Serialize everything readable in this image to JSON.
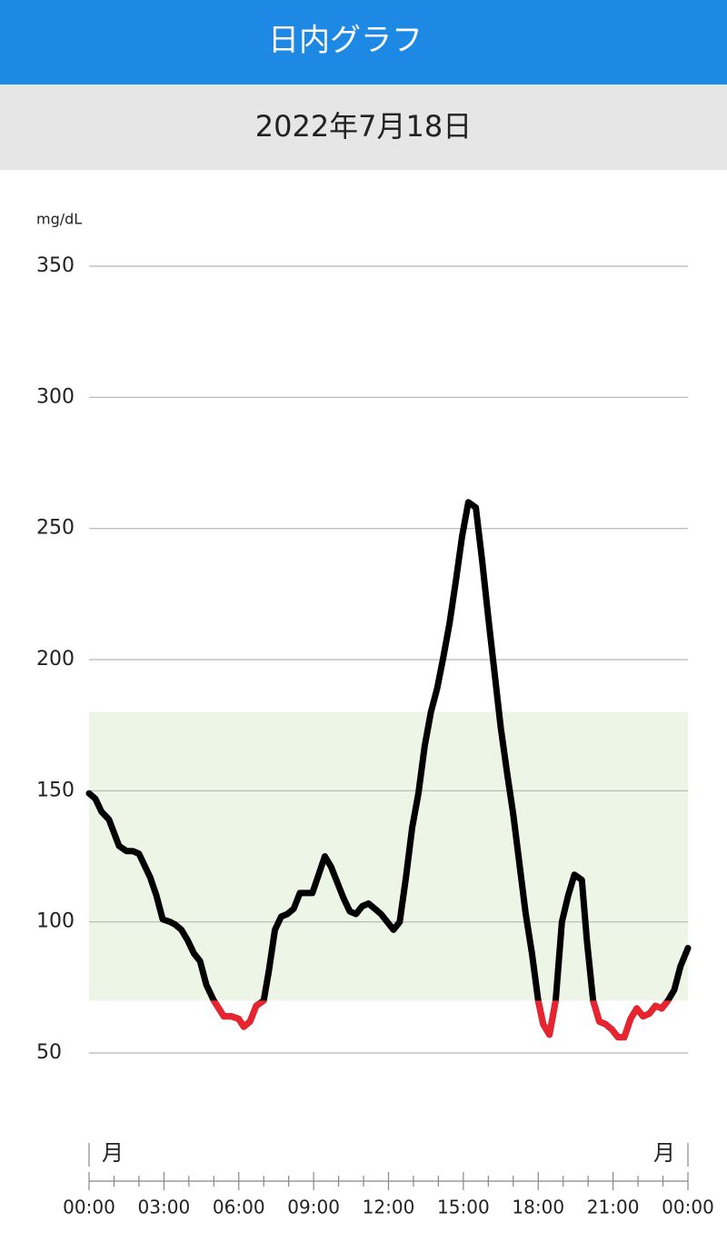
{
  "header": {
    "title": "日内グラフ"
  },
  "date": "2022年7月18日",
  "chart_data": {
    "type": "line",
    "y_axis_label": "mg/dL",
    "ylim": [
      50,
      350
    ],
    "yticks": [
      50,
      100,
      150,
      200,
      250,
      300,
      350
    ],
    "xlim": [
      0,
      24
    ],
    "xticks": [
      {
        "value": 0,
        "label": "00:00"
      },
      {
        "value": 3,
        "label": "03:00"
      },
      {
        "value": 6,
        "label": "06:00"
      },
      {
        "value": 9,
        "label": "09:00"
      },
      {
        "value": 12,
        "label": "12:00"
      },
      {
        "value": 15,
        "label": "15:00"
      },
      {
        "value": 18,
        "label": "18:00"
      },
      {
        "value": 21,
        "label": "21:00"
      },
      {
        "value": 24,
        "label": "00:00"
      }
    ],
    "xminorticks": [
      1,
      2,
      4,
      5,
      7,
      8,
      10,
      11,
      13,
      14,
      16,
      17,
      19,
      20,
      22,
      23
    ],
    "day_labels": [
      "月",
      "月"
    ],
    "grid": true,
    "target_range": [
      70,
      180
    ],
    "target_color": "#edf6e6",
    "color": "#000000",
    "low_color": "#e8242e",
    "x": [
      0,
      0.25,
      0.5,
      0.8,
      1.2,
      1.5,
      1.75,
      2.0,
      2.45,
      2.7,
      2.95,
      3.25,
      3.45,
      3.7,
      3.95,
      4.2,
      4.45,
      4.7,
      5.0,
      5.4,
      5.7,
      6.0,
      6.2,
      6.45,
      6.7,
      7.0,
      7.2,
      7.45,
      7.7,
      7.95,
      8.2,
      8.45,
      8.7,
      8.95,
      9.45,
      9.7,
      9.95,
      10.2,
      10.45,
      10.7,
      10.95,
      11.2,
      11.45,
      11.7,
      11.95,
      12.2,
      12.45,
      12.7,
      12.95,
      13.2,
      13.45,
      13.7,
      13.95,
      14.2,
      14.45,
      14.7,
      14.95,
      15.2,
      15.5,
      15.75,
      16.0,
      16.25,
      16.5,
      16.75,
      17.0,
      17.25,
      17.5,
      17.75,
      18.0,
      18.2,
      18.45,
      18.7,
      18.95,
      19.2,
      19.45,
      19.75,
      19.95,
      20.2,
      20.45,
      20.7,
      20.95,
      21.2,
      21.45,
      21.7,
      21.95,
      22.2,
      22.45,
      22.7,
      22.95,
      23.2,
      23.45,
      23.7,
      24.0
    ],
    "values": [
      149,
      147,
      142,
      139,
      129,
      127,
      127,
      126,
      117,
      110,
      101,
      100,
      99,
      97,
      93,
      88,
      85,
      76,
      70,
      64,
      64,
      63,
      60,
      62,
      68,
      70,
      81,
      97,
      102,
      103,
      105,
      111,
      111,
      111,
      125,
      121,
      115,
      109,
      104,
      103,
      106,
      107,
      105,
      103,
      100,
      97,
      100,
      117,
      136,
      149,
      167,
      180,
      189,
      201,
      214,
      230,
      247,
      260,
      258,
      238,
      216,
      195,
      174,
      157,
      141,
      122,
      103,
      88,
      70,
      61,
      57,
      70,
      100,
      110,
      118,
      116,
      93,
      70,
      62,
      61,
      59,
      56,
      56,
      63,
      67,
      64,
      65,
      68,
      67,
      70,
      74,
      83,
      90
    ]
  }
}
